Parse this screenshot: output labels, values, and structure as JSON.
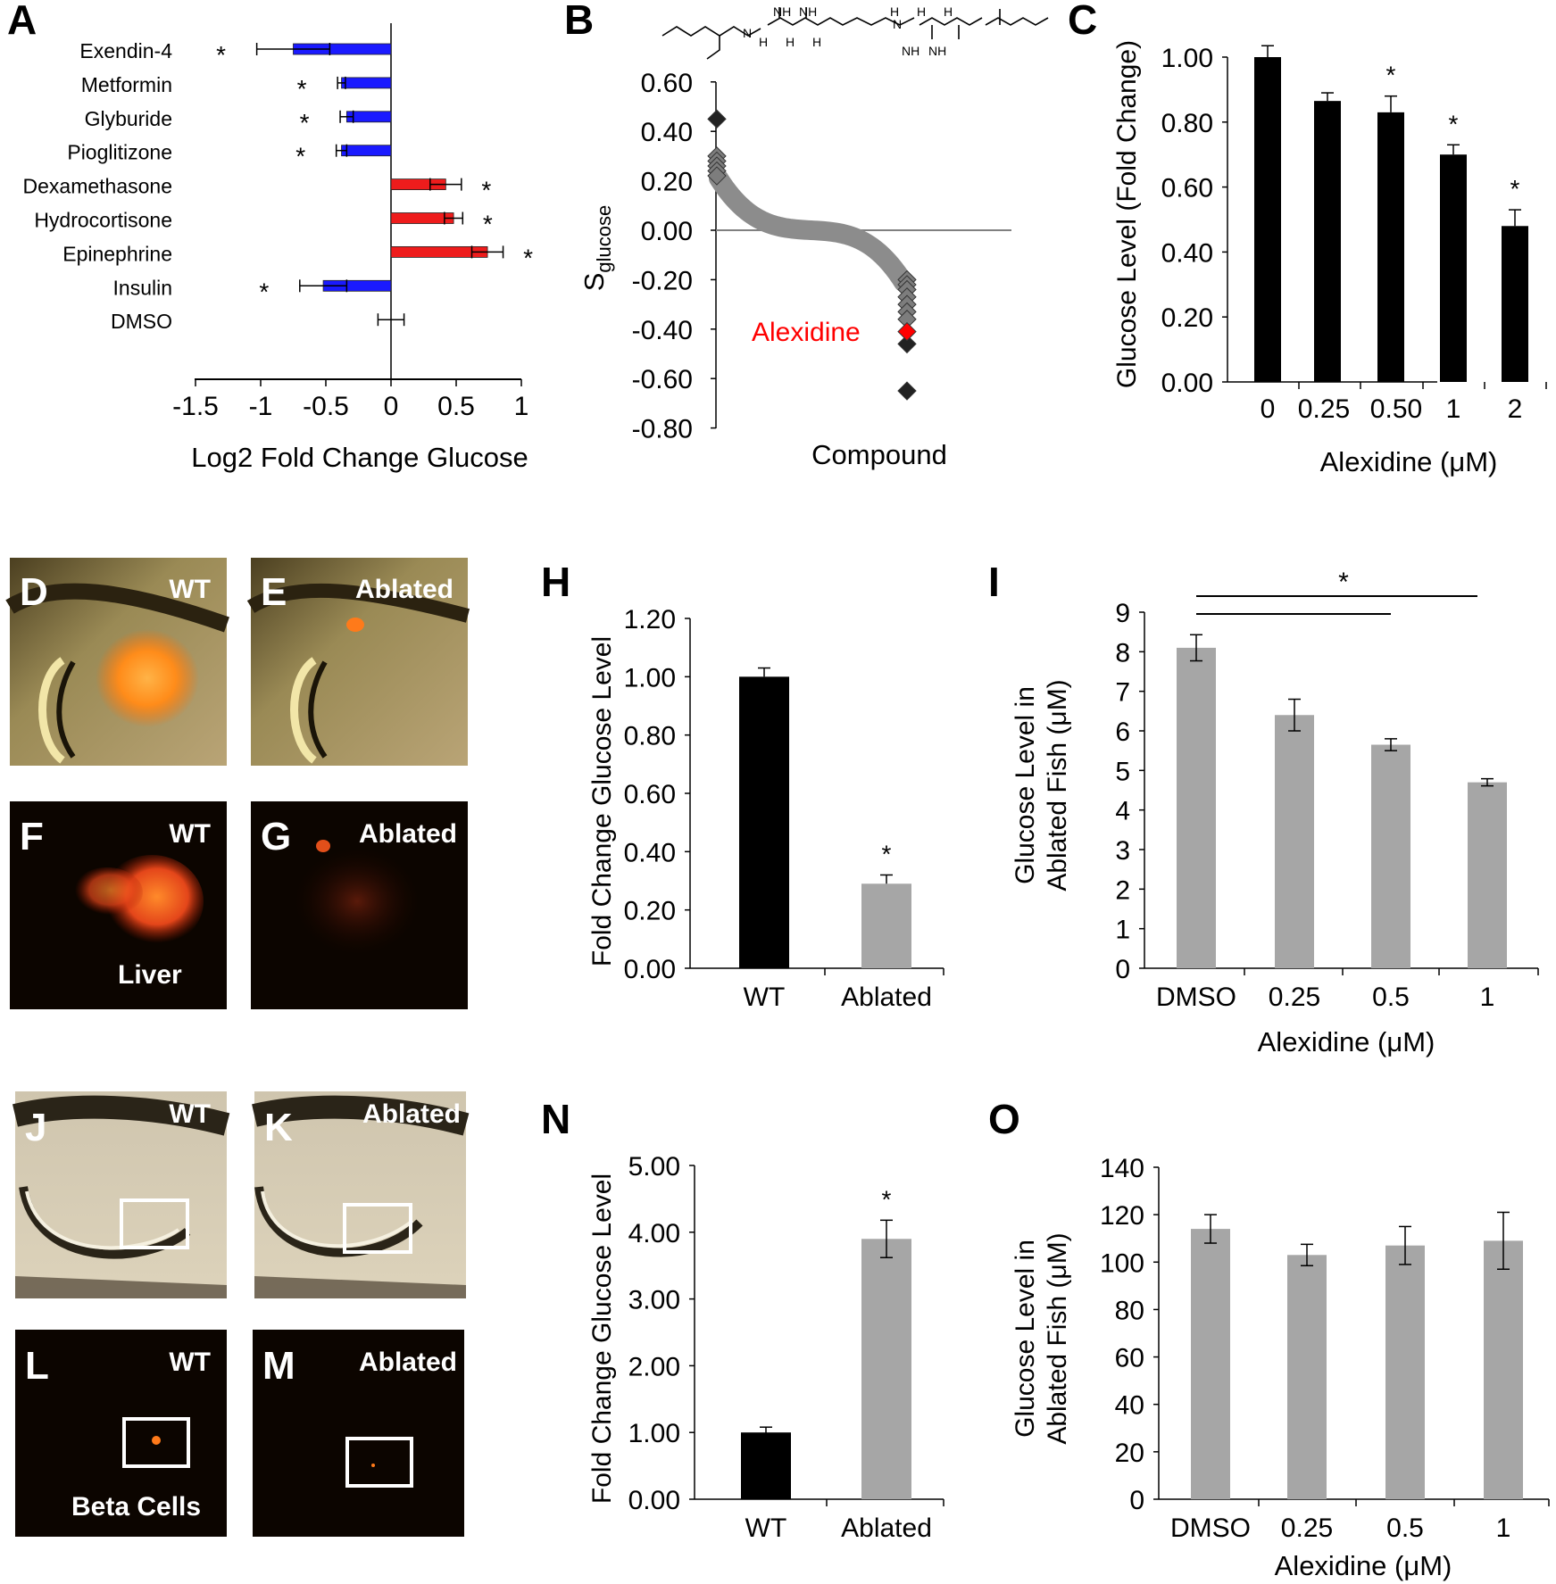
{
  "colors": {
    "blue": "#1a1aff",
    "red": "#ee1c1c",
    "black": "#000000",
    "gray": "#a6a6a6",
    "highlight": "#ff0000"
  },
  "panel_labels": [
    "A",
    "B",
    "C",
    "D",
    "E",
    "F",
    "G",
    "H",
    "I",
    "J",
    "K",
    "L",
    "M",
    "N",
    "O"
  ],
  "micro": {
    "D": {
      "tag": "WT"
    },
    "E": {
      "tag": "Ablated"
    },
    "F": {
      "tag": "WT",
      "caption": "Liver"
    },
    "G": {
      "tag": "Ablated"
    },
    "J": {
      "tag": "WT"
    },
    "K": {
      "tag": "Ablated"
    },
    "L": {
      "tag": "WT",
      "caption": "Beta Cells"
    },
    "M": {
      "tag": "Ablated"
    }
  },
  "chart_data": [
    {
      "panel": "A",
      "type": "bar",
      "orientation": "horizontal",
      "categories": [
        "Exendin-4",
        "Metformin",
        "Glyburide",
        "Pioglitizone",
        "Dexamethasone",
        "Hydrocortisone",
        "Epinephrine",
        "Insulin",
        "DMSO"
      ],
      "values": [
        -0.75,
        -0.38,
        -0.34,
        -0.38,
        0.42,
        0.48,
        0.74,
        -0.52,
        0.0
      ],
      "errors": [
        0.28,
        0.03,
        0.05,
        0.04,
        0.12,
        0.07,
        0.12,
        0.18,
        0.1
      ],
      "significant": [
        true,
        true,
        true,
        true,
        true,
        true,
        true,
        true,
        false
      ],
      "star": "*",
      "xlabel": "Log2 Fold Change Glucose",
      "xlim": [
        -1.5,
        1
      ],
      "xticks": [
        "-1.5",
        "-1",
        "-0.5",
        "0",
        "0.5",
        "1"
      ]
    },
    {
      "panel": "B",
      "type": "scatter",
      "xlabel": "Compound",
      "ylabel_main": "S",
      "ylabel_sub": "glucose",
      "ylim": [
        -0.8,
        0.6
      ],
      "yticks": [
        "0.60",
        "0.40",
        "0.20",
        "0.00",
        "-0.20",
        "-0.40",
        "-0.60",
        "-0.80"
      ],
      "highlight_label": "Alexidine",
      "highlight_value": -0.41,
      "top_points": [
        0.45,
        0.3,
        0.28,
        0.26,
        0.24,
        0.22
      ],
      "bottom_points": [
        -0.2,
        -0.22,
        -0.24,
        -0.27,
        -0.3,
        -0.33,
        -0.36,
        -0.46,
        -0.65
      ],
      "structure_labels": {
        "nh": "NH",
        "h": "H",
        "n": "N",
        "nh_lower": "NH"
      }
    },
    {
      "panel": "C",
      "type": "bar",
      "categories": [
        "0",
        "0.25",
        "0.50",
        "1",
        "2"
      ],
      "values": [
        1.0,
        0.865,
        0.83,
        0.7,
        0.48
      ],
      "errors": [
        0.035,
        0.025,
        0.05,
        0.03,
        0.05
      ],
      "significant": [
        false,
        false,
        true,
        true,
        true
      ],
      "star": "*",
      "xlabel": "Alexidine (μM)",
      "ylabel": "Glucose Level (Fold Change)",
      "ylim": [
        0,
        1.0
      ],
      "yticks": [
        "0.00",
        "0.20",
        "0.40",
        "0.60",
        "0.80",
        "1.00"
      ]
    },
    {
      "panel": "H",
      "type": "bar",
      "categories": [
        "WT",
        "Ablated"
      ],
      "values": [
        1.0,
        0.29
      ],
      "errors": [
        0.03,
        0.03
      ],
      "significant": [
        false,
        true
      ],
      "star": "*",
      "ylabel": "Fold Change Glucose Level",
      "ylim": [
        0,
        1.2
      ],
      "yticks": [
        "0.00",
        "0.20",
        "0.40",
        "0.60",
        "0.80",
        "1.00",
        "1.20"
      ]
    },
    {
      "panel": "I",
      "type": "bar",
      "categories": [
        "DMSO",
        "0.25",
        "0.5",
        "1"
      ],
      "values": [
        8.1,
        6.4,
        5.65,
        4.7
      ],
      "errors": [
        0.33,
        0.4,
        0.15,
        0.09
      ],
      "star": "*",
      "xlabel": "Alexidine (μM)",
      "ylabel_line1": "Glucose Level in",
      "ylabel_line2": "Ablated Fish (μM)",
      "ylim": [
        0,
        9
      ],
      "yticks": [
        "0",
        "1",
        "2",
        "3",
        "4",
        "5",
        "6",
        "7",
        "8",
        "9"
      ]
    },
    {
      "panel": "N",
      "type": "bar",
      "categories": [
        "WT",
        "Ablated"
      ],
      "values": [
        1.0,
        3.9
      ],
      "errors": [
        0.08,
        0.28
      ],
      "significant": [
        false,
        true
      ],
      "star": "*",
      "ylabel": "Fold Change Glucose Level",
      "ylim": [
        0,
        5
      ],
      "yticks": [
        "0.00",
        "1.00",
        "2.00",
        "3.00",
        "4.00",
        "5.00"
      ]
    },
    {
      "panel": "O",
      "type": "bar",
      "categories": [
        "DMSO",
        "0.25",
        "0.5",
        "1"
      ],
      "values": [
        114,
        103,
        107,
        109
      ],
      "errors": [
        6,
        4.5,
        8,
        12
      ],
      "xlabel": "Alexidine (μM)",
      "ylabel_line1": "Glucose Level in",
      "ylabel_line2": "Ablated Fish (μM)",
      "ylim": [
        0,
        140
      ],
      "yticks": [
        "0",
        "20",
        "40",
        "60",
        "80",
        "100",
        "120",
        "140"
      ]
    }
  ]
}
